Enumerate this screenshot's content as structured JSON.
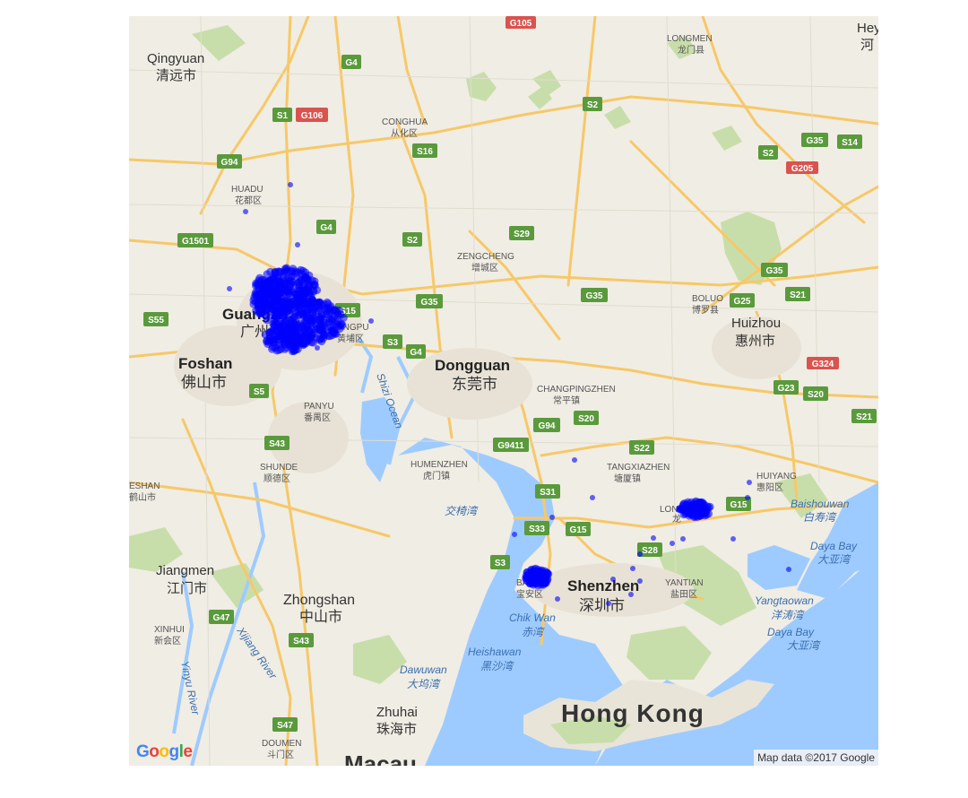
{
  "map": {
    "attribution": "Map data ©2017 Google",
    "logo_text": "Google",
    "colors": {
      "land": "#f0ede4",
      "water": "#9ecbff",
      "park": "#c8deaa",
      "road": "#f7c868",
      "marker": "#0000ff"
    }
  },
  "labels": {
    "qingyuan_en": "Qingyuan",
    "qingyuan_cn": "清远市",
    "longmen_en": "LONGMEN",
    "longmen_cn": "龙门县",
    "heyuan_en": "Hey",
    "heyuan_cn": "河",
    "conghua_en": "CONGHUA",
    "conghua_cn": "从化区",
    "huadu_en": "HUADU",
    "huadu_cn": "花都区",
    "guangzhou_en": "Guangzh",
    "guangzhou_cn": "广州",
    "zengcheng_en": "ZENGCHENG",
    "zengcheng_cn": "增城区",
    "huangpu_en": "ANGPU",
    "huangpu_cn": "黄埔区",
    "boluo_en": "BOLUO",
    "boluo_cn": "博罗县",
    "huizhou_en": "Huizhou",
    "huizhou_cn": "惠州市",
    "foshan_en": "Foshan",
    "foshan_cn": "佛山市",
    "dongguan_en": "Dongguan",
    "dongguan_cn": "东莞市",
    "changping_en": "CHANGPINGZHEN",
    "changping_cn": "常平镇",
    "panyu_en": "PANYU",
    "panyu_cn": "番禺区",
    "shizi": "Shizi Ocean",
    "shunde_en": "SHUNDE",
    "shunde_cn": "顺德区",
    "eshan_en": "ESHAN",
    "eshan_cn": "鹤山市",
    "humenzhen_en": "HUMENZHEN",
    "humenzhen_cn": "虎门镇",
    "tangxia_en": "TANGXIAZHEN",
    "tangxia_cn": "塘厦镇",
    "huiyang_en": "HUIYANG",
    "huiyang_cn": "惠阳区",
    "baishouwan_en": "Baishouwan",
    "baishouwan_cn": "白寿湾",
    "jiaoyiwan": "交椅湾",
    "longgang_en": "LON",
    "longgang_cn": "龙",
    "dayabay1_en": "Daya Bay",
    "dayabay1_cn": "大亚湾",
    "jiangmen_en": "Jiangmen",
    "jiangmen_cn": "江门市",
    "baoan_en": "BAOAN",
    "baoan_cn": "宝安区",
    "shenzhen_en": "Shenzhen",
    "shenzhen_cn": "深圳市",
    "yantian_en": "YANTIAN",
    "yantian_cn": "盐田区",
    "yangtaowan_en": "Yangtaowan",
    "yangtaowan_cn": "洋涛湾",
    "zhongshan_en": "Zhongshan",
    "zhongshan_cn": "中山市",
    "xinhui_en": "XINHUI",
    "xinhui_cn": "新会区",
    "chikwan_en": "Chik Wan",
    "chikwan_cn": "赤湾",
    "dayabay2_en": "Daya Bay",
    "dayabay2_cn": "大亚湾",
    "heishawan_en": "Heishawan",
    "heishawan_cn": "黑沙湾",
    "xijiang": "Xijiang River",
    "yinyu": "Yinyu River",
    "dawuwan_en": "Dawuwan",
    "dawuwan_cn": "大坞湾",
    "hongkong": "Hong Kong",
    "zhuhai_en": "Zhuhai",
    "zhuhai_cn": "珠海市",
    "doumen_en": "DOUMEN",
    "doumen_cn": "斗门区",
    "macau": "Macau"
  },
  "shields": [
    {
      "id": "G105",
      "text": "G105",
      "kind": "national"
    },
    {
      "id": "G4a",
      "text": "G4",
      "kind": "expressway"
    },
    {
      "id": "S1",
      "text": "S1",
      "kind": "expressway"
    },
    {
      "id": "G106",
      "text": "G106",
      "kind": "national"
    },
    {
      "id": "S2a",
      "text": "S2",
      "kind": "expressway"
    },
    {
      "id": "S16",
      "text": "S16",
      "kind": "expressway"
    },
    {
      "id": "G35a",
      "text": "G35",
      "kind": "expressway"
    },
    {
      "id": "S14",
      "text": "S14",
      "kind": "expressway"
    },
    {
      "id": "S2b",
      "text": "S2",
      "kind": "expressway"
    },
    {
      "id": "G205",
      "text": "G205",
      "kind": "national"
    },
    {
      "id": "G94a",
      "text": "G94",
      "kind": "expressway"
    },
    {
      "id": "G4b",
      "text": "G4",
      "kind": "expressway"
    },
    {
      "id": "G1501",
      "text": "G1501",
      "kind": "expressway"
    },
    {
      "id": "S2c",
      "text": "S2",
      "kind": "expressway"
    },
    {
      "id": "S29",
      "text": "S29",
      "kind": "expressway"
    },
    {
      "id": "G35b",
      "text": "G35",
      "kind": "expressway"
    },
    {
      "id": "S55",
      "text": "S55",
      "kind": "expressway"
    },
    {
      "id": "S15",
      "text": "S15",
      "kind": "expressway"
    },
    {
      "id": "G35c",
      "text": "G35",
      "kind": "expressway"
    },
    {
      "id": "G35d",
      "text": "G35",
      "kind": "expressway"
    },
    {
      "id": "G25",
      "text": "G25",
      "kind": "expressway"
    },
    {
      "id": "S21a",
      "text": "S21",
      "kind": "expressway"
    },
    {
      "id": "S3a",
      "text": "S3",
      "kind": "expressway"
    },
    {
      "id": "G4c",
      "text": "G4",
      "kind": "expressway"
    },
    {
      "id": "G324",
      "text": "G324",
      "kind": "national"
    },
    {
      "id": "S5",
      "text": "S5",
      "kind": "expressway"
    },
    {
      "id": "G23",
      "text": "G23",
      "kind": "expressway"
    },
    {
      "id": "S20a",
      "text": "S20",
      "kind": "expressway"
    },
    {
      "id": "G94b",
      "text": "G94",
      "kind": "expressway"
    },
    {
      "id": "S20b",
      "text": "S20",
      "kind": "expressway"
    },
    {
      "id": "S21b",
      "text": "S21",
      "kind": "expressway"
    },
    {
      "id": "G9411",
      "text": "G9411",
      "kind": "expressway"
    },
    {
      "id": "S43a",
      "text": "S43",
      "kind": "expressway"
    },
    {
      "id": "S22",
      "text": "S22",
      "kind": "expressway"
    },
    {
      "id": "S31",
      "text": "S31",
      "kind": "expressway"
    },
    {
      "id": "G15a",
      "text": "G15",
      "kind": "expressway"
    },
    {
      "id": "S33",
      "text": "S33",
      "kind": "expressway"
    },
    {
      "id": "G15b",
      "text": "G15",
      "kind": "expressway"
    },
    {
      "id": "S3b",
      "text": "S3",
      "kind": "expressway"
    },
    {
      "id": "S28",
      "text": "S28",
      "kind": "expressway"
    },
    {
      "id": "G47a",
      "text": "G47",
      "kind": "expressway"
    },
    {
      "id": "S43b",
      "text": "S43",
      "kind": "expressway"
    },
    {
      "id": "S47",
      "text": "S47",
      "kind": "expressway"
    }
  ]
}
